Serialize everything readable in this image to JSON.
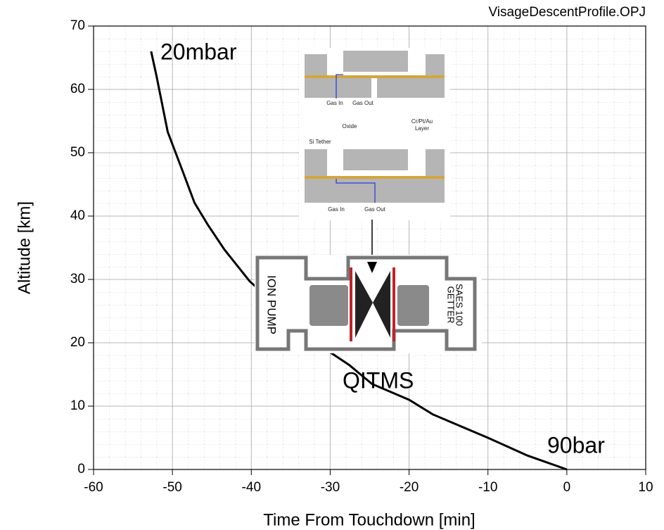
{
  "chart_data": {
    "type": "line",
    "title": "VisageDescentProfile.OPJ",
    "xlabel": "Time From Touchdown [min]",
    "ylabel": "Altitude [km]",
    "x": [
      -52.7,
      -52,
      -50.6,
      -48.8,
      -47.2,
      -45.5,
      -43.4,
      -40.2,
      -35,
      -30,
      -27.6,
      -24.7,
      -20,
      -17,
      -10,
      -5,
      0
    ],
    "values": [
      66,
      62,
      53.3,
      47.4,
      42.1,
      38.6,
      34.7,
      29.7,
      24,
      18.5,
      16.5,
      13.5,
      11,
      8.7,
      5,
      2.2,
      0
    ],
    "color": "#000000",
    "xlim": [
      -60,
      10
    ],
    "ylim": [
      0,
      70
    ],
    "xticks": [
      -60,
      -50,
      -40,
      -30,
      -20,
      -10,
      0,
      10
    ],
    "yticks": [
      0,
      10,
      20,
      30,
      40,
      50,
      60,
      70
    ],
    "grid": true,
    "annotations": [
      "20mbar",
      "90bar",
      "QITMS"
    ]
  },
  "insets": {
    "mems": [
      "Gas In",
      "Gas Out",
      "Oxide",
      "Cr/Pt/Au",
      "Layer",
      "Si Tether",
      "Gas In",
      "Gas Out"
    ],
    "qitms": [
      "ION PUMP",
      "SAES 100",
      "GETTER"
    ]
  }
}
